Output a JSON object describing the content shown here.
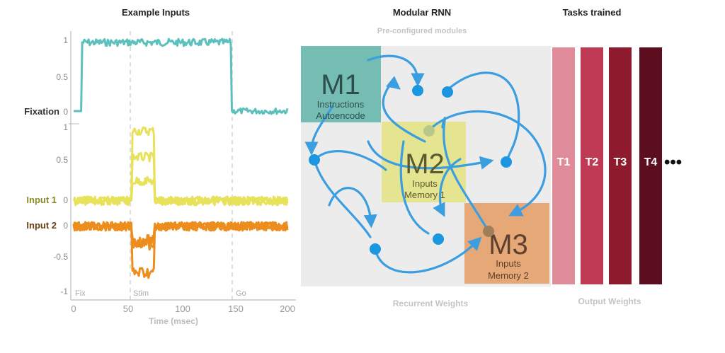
{
  "left_panel": {
    "title": "Example Inputs",
    "xlabel": "Time (msec)",
    "x_ticks": [
      "0",
      "50",
      "100",
      "150",
      "200"
    ],
    "phases": [
      "Fix",
      "Stim",
      "Go"
    ],
    "fixation": {
      "label": "Fixation",
      "ticks": [
        "1",
        "0.5",
        "0"
      ],
      "color": "#5cc1bd"
    },
    "inputs": {
      "label_1": "Input 1",
      "label_2": "Input 2",
      "ticks": [
        "1",
        "0.5",
        "0",
        "0",
        "-0.5",
        "-1"
      ],
      "color_1": "#e8e25a",
      "color_2": "#ec8d1d"
    }
  },
  "middle_panel": {
    "title": "Modular RNN",
    "subtitle": "Pre-configured modules",
    "footer": "Recurrent Weights",
    "modules": [
      {
        "name": "M1",
        "line1": "Instructions",
        "line2": "Autoencode",
        "color": "#75bdb3"
      },
      {
        "name": "M2",
        "line1": "Inputs",
        "line2": "Memory 1",
        "color": "#e3e27a"
      },
      {
        "name": "M3",
        "line1": "Inputs",
        "line2": "Memory 2",
        "color": "#e5a876"
      }
    ],
    "node_color": "#1c96e0",
    "arrow_color": "#3b9ee0"
  },
  "right_panel": {
    "title": "Tasks trained",
    "footer": "Output Weights",
    "tasks": [
      {
        "label": "T1",
        "color": "#e08b99"
      },
      {
        "label": "T2",
        "color": "#be3a55"
      },
      {
        "label": "T3",
        "color": "#8e1a2d"
      },
      {
        "label": "T4",
        "color": "#5d0e1e"
      }
    ],
    "ellipsis": "•••"
  }
}
